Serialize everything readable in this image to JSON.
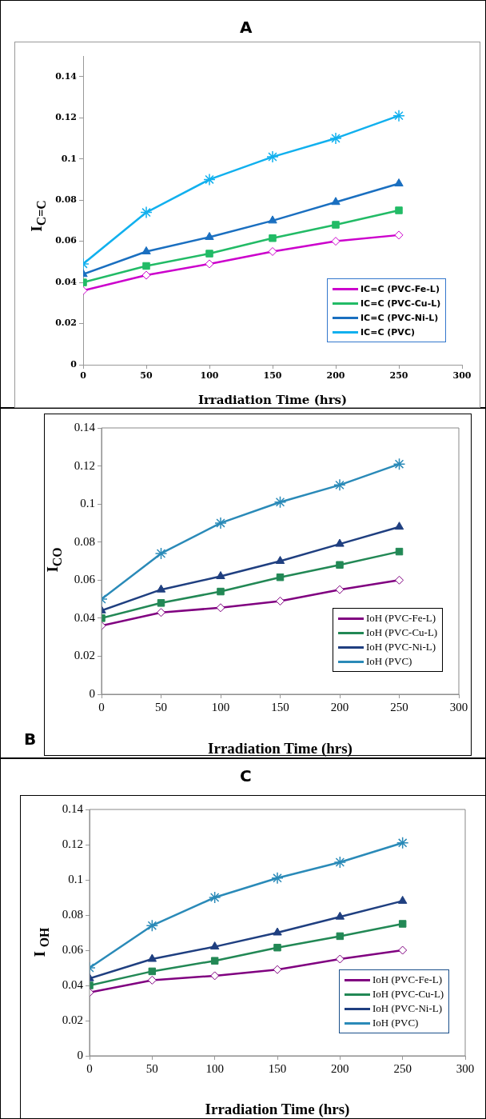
{
  "chart_data": [
    {
      "type": "line",
      "title": "A",
      "xlabel": "Irradiation Time (hrs)",
      "ylabel": "I$_{C=C}$",
      "x": [
        0,
        50,
        100,
        150,
        200,
        250
      ],
      "xlim": [
        0,
        300
      ],
      "xticks": [
        0,
        50,
        100,
        150,
        200,
        250,
        300
      ],
      "ylim": [
        0,
        0.15
      ],
      "yticks": [
        0,
        0.02,
        0.04,
        0.06,
        0.08,
        0.1,
        0.12,
        0.14
      ],
      "legend": "bottom right",
      "series": [
        {
          "name": "IC=C (PVC-Fe-L)",
          "color": "#cc00cc",
          "marker": "diamond",
          "values": [
            0.036,
            0.0435,
            0.049,
            0.055,
            0.06,
            0.063
          ]
        },
        {
          "name": "IC=C (PVC-Cu-L)",
          "color": "#22bb66",
          "marker": "square",
          "values": [
            0.04,
            0.048,
            0.054,
            0.0615,
            0.068,
            0.075
          ]
        },
        {
          "name": "IC=C (PVC-Ni-L)",
          "color": "#1a6fc0",
          "marker": "triangle",
          "values": [
            0.044,
            0.055,
            0.062,
            0.07,
            0.079,
            0.088
          ]
        },
        {
          "name": "IC=C (PVC)",
          "color": "#11b0ee",
          "marker": "cross",
          "values": [
            0.049,
            0.074,
            0.09,
            0.101,
            0.11,
            0.121
          ]
        }
      ]
    },
    {
      "type": "line",
      "annotations": [
        "B"
      ],
      "xlabel": "Irradiation Time (hrs)",
      "ylabel": "I$_{CO}$",
      "x": [
        0,
        50,
        100,
        150,
        200,
        250
      ],
      "xlim": [
        0,
        300
      ],
      "xticks": [
        0,
        50,
        100,
        150,
        200,
        250,
        300
      ],
      "ylim": [
        0,
        0.14
      ],
      "yticks": [
        0,
        0.02,
        0.04,
        0.06,
        0.08,
        0.1,
        0.12,
        0.14
      ],
      "legend": "bottom right",
      "series": [
        {
          "name": "IoH (PVC-Fe-L)",
          "color": "#800080",
          "marker": "diamond",
          "values": [
            0.036,
            0.043,
            0.0455,
            0.049,
            0.055,
            0.06
          ]
        },
        {
          "name": "IoH (PVC-Cu-L)",
          "color": "#228855",
          "marker": "square",
          "values": [
            0.04,
            0.048,
            0.054,
            0.0615,
            0.068,
            0.075
          ]
        },
        {
          "name": "IoH (PVC-Ni-L)",
          "color": "#1f3f80",
          "marker": "triangle",
          "values": [
            0.044,
            0.055,
            0.062,
            0.07,
            0.079,
            0.088
          ]
        },
        {
          "name": "IoH (PVC)",
          "color": "#2a8ab8",
          "marker": "cross",
          "values": [
            0.05,
            0.074,
            0.09,
            0.101,
            0.11,
            0.121
          ]
        }
      ]
    },
    {
      "type": "line",
      "title": "C",
      "xlabel": "Irradiation Time (hrs)",
      "ylabel": "I $_{OH}$",
      "x": [
        0,
        50,
        100,
        150,
        200,
        250
      ],
      "xlim": [
        0,
        300
      ],
      "xticks": [
        0,
        50,
        100,
        150,
        200,
        250,
        300
      ],
      "ylim": [
        0,
        0.14
      ],
      "yticks": [
        0,
        0.02,
        0.04,
        0.06,
        0.08,
        0.1,
        0.12,
        0.14
      ],
      "legend": "bottom right",
      "series": [
        {
          "name": "IoH (PVC-Fe-L)",
          "color": "#800080",
          "marker": "diamond",
          "values": [
            0.036,
            0.043,
            0.0455,
            0.049,
            0.055,
            0.06
          ]
        },
        {
          "name": "IoH (PVC-Cu-L)",
          "color": "#228855",
          "marker": "square",
          "values": [
            0.04,
            0.048,
            0.054,
            0.0615,
            0.068,
            0.075
          ]
        },
        {
          "name": "IoH (PVC-Ni-L)",
          "color": "#1f3f80",
          "marker": "triangle",
          "values": [
            0.044,
            0.055,
            0.062,
            0.07,
            0.079,
            0.088
          ]
        },
        {
          "name": "IoH (PVC)",
          "color": "#2a8ab8",
          "marker": "cross",
          "values": [
            0.05,
            0.074,
            0.09,
            0.101,
            0.11,
            0.121
          ]
        }
      ]
    }
  ]
}
